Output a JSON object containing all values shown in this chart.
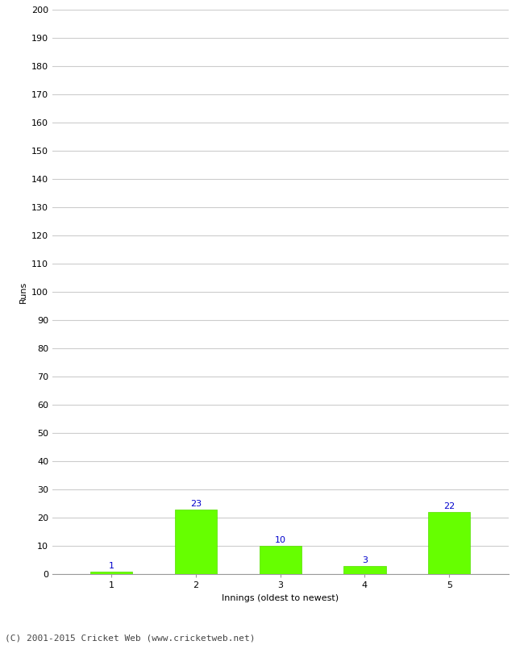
{
  "categories": [
    "1",
    "2",
    "3",
    "4",
    "5"
  ],
  "values": [
    1,
    23,
    10,
    3,
    22
  ],
  "bar_color": "#66ff00",
  "bar_edge_color": "#55dd00",
  "label_color": "#0000cc",
  "xlabel": "Innings (oldest to newest)",
  "ylabel": "Runs",
  "ylim": [
    0,
    200
  ],
  "yticks": [
    0,
    10,
    20,
    30,
    40,
    50,
    60,
    70,
    80,
    90,
    100,
    110,
    120,
    130,
    140,
    150,
    160,
    170,
    180,
    190,
    200
  ],
  "background_color": "#ffffff",
  "grid_color": "#cccccc",
  "footer_text": "(C) 2001-2015 Cricket Web (www.cricketweb.net)",
  "label_fontsize": 8,
  "tick_fontsize": 8,
  "ylabel_fontsize": 8,
  "xlabel_fontsize": 8,
  "footer_fontsize": 8,
  "bar_width": 0.5
}
